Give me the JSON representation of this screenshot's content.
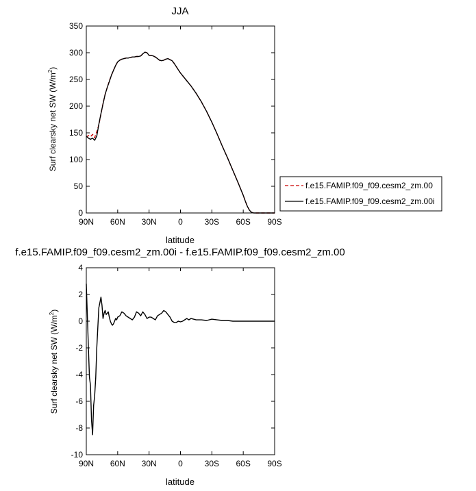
{
  "chart_data": [
    {
      "type": "line",
      "title": "JJA",
      "xlabel": "latitude",
      "ylabel": "Surf clearsky net SW (W/m",
      "ylabel_sup": "2",
      "ylabel_close": ")",
      "x_ticks": [
        90,
        60,
        30,
        0,
        -30,
        -60,
        -90
      ],
      "x_tick_labels": [
        "90N",
        "60N",
        "30N",
        "0",
        "30S",
        "60S",
        "90S"
      ],
      "xlim": [
        90,
        -90
      ],
      "ylim": [
        0,
        350
      ],
      "y_ticks": [
        0,
        50,
        100,
        150,
        200,
        250,
        300,
        350
      ],
      "y_tick_labels": [
        "0",
        "50",
        "100",
        "150",
        "200",
        "250",
        "300",
        "350"
      ],
      "grid": false,
      "legend_position": "right",
      "series": [
        {
          "name": "f.e15.FAMIP.f09_f09.cesm2_zm.00",
          "color": "#cc0000",
          "style": "dashed",
          "x": [
            90,
            88,
            86,
            84,
            82,
            80,
            78,
            76,
            74,
            72,
            70,
            68,
            66,
            64,
            62,
            60,
            58,
            56,
            54,
            52,
            50,
            48,
            46,
            44,
            42,
            40,
            38,
            36,
            34,
            32,
            30,
            28,
            26,
            24,
            22,
            20,
            18,
            16,
            14,
            12,
            10,
            8,
            6,
            4,
            2,
            0,
            -5,
            -10,
            -15,
            -20,
            -25,
            -30,
            -35,
            -40,
            -45,
            -50,
            -55,
            -60,
            -62,
            -64,
            -66,
            -68,
            -70,
            -75,
            -80,
            -85,
            -90
          ],
          "y": [
            142,
            145,
            143,
            147,
            141,
            152,
            165,
            185,
            205,
            222,
            235,
            247,
            258,
            267,
            276,
            283,
            286,
            288,
            289,
            290,
            290,
            291,
            292,
            292,
            293,
            293,
            294,
            298,
            301,
            300,
            295,
            295,
            294,
            292,
            289,
            286,
            285,
            286,
            288,
            289,
            287,
            285,
            280,
            274,
            268,
            262,
            250,
            238,
            224,
            208,
            190,
            170,
            148,
            125,
            103,
            80,
            57,
            33,
            22,
            12,
            5,
            1,
            0,
            0,
            0,
            0,
            0
          ]
        },
        {
          "name": "f.e15.FAMIP.f09_f09.cesm2_zm.00i",
          "color": "#000000",
          "style": "solid",
          "x": [
            90,
            88,
            86,
            84,
            82,
            80,
            78,
            76,
            74,
            72,
            70,
            68,
            66,
            64,
            62,
            60,
            58,
            56,
            54,
            52,
            50,
            48,
            46,
            44,
            42,
            40,
            38,
            36,
            34,
            32,
            30,
            28,
            26,
            24,
            22,
            20,
            18,
            16,
            14,
            12,
            10,
            8,
            6,
            4,
            2,
            0,
            -5,
            -10,
            -15,
            -20,
            -25,
            -30,
            -35,
            -40,
            -45,
            -50,
            -55,
            -60,
            -62,
            -64,
            -66,
            -68,
            -70,
            -75,
            -80,
            -85,
            -90
          ],
          "y": [
            144,
            140,
            138,
            140,
            136,
            144,
            166,
            186,
            204,
            222,
            235,
            246,
            258,
            267,
            276,
            283,
            286,
            288,
            289,
            290,
            290,
            291,
            292,
            292,
            293,
            293,
            294,
            298,
            301,
            300,
            295,
            295,
            294,
            292,
            289,
            286,
            285,
            286,
            288,
            289,
            287,
            285,
            280,
            274,
            268,
            262,
            250,
            238,
            224,
            208,
            190,
            170,
            148,
            125,
            103,
            80,
            57,
            33,
            22,
            12,
            5,
            1,
            0,
            0,
            0,
            0,
            0
          ]
        }
      ]
    },
    {
      "type": "line",
      "title": "f.e15.FAMIP.f09_f09.cesm2_zm.00i - f.e15.FAMIP.f09_f09.cesm2_zm.00",
      "xlabel": "latitude",
      "ylabel": "Surf clearsky net SW (W/m",
      "ylabel_sup": "2",
      "ylabel_close": ")",
      "x_ticks": [
        90,
        60,
        30,
        0,
        -30,
        -60,
        -90
      ],
      "x_tick_labels": [
        "90N",
        "60N",
        "30N",
        "0",
        "30S",
        "60S",
        "90S"
      ],
      "xlim": [
        90,
        -90
      ],
      "ylim": [
        -10,
        4
      ],
      "y_ticks": [
        -10,
        -8,
        -6,
        -4,
        -2,
        0,
        2,
        4
      ],
      "y_tick_labels": [
        "-10",
        "-8",
        "-6",
        "-4",
        "-2",
        "0",
        "2",
        "4"
      ],
      "grid": false,
      "series": [
        {
          "color": "#000000",
          "style": "solid",
          "x": [
            90,
            89,
            88,
            87,
            86,
            85,
            84,
            83,
            82,
            81,
            80,
            79,
            78,
            77,
            76,
            75,
            74,
            73,
            72,
            71,
            70,
            69,
            68,
            67,
            66,
            65,
            64,
            63,
            62,
            61,
            60,
            58,
            56,
            54,
            52,
            50,
            48,
            46,
            44,
            42,
            40,
            38,
            36,
            34,
            32,
            30,
            28,
            26,
            24,
            22,
            20,
            18,
            16,
            14,
            12,
            10,
            8,
            6,
            4,
            2,
            0,
            -2,
            -4,
            -6,
            -8,
            -10,
            -15,
            -20,
            -25,
            -30,
            -35,
            -40,
            -45,
            -50,
            -55,
            -60,
            -70,
            -80,
            -90
          ],
          "y": [
            2.8,
            0.5,
            -2,
            -4.2,
            -4.8,
            -7.4,
            -8.5,
            -6.3,
            -5.6,
            -4.2,
            -2,
            -0.5,
            1.0,
            1.4,
            1.8,
            1.2,
            0.2,
            0.6,
            0.8,
            0.5,
            0.6,
            0.7,
            0.3,
            0.0,
            -0.2,
            -0.3,
            -0.2,
            0.0,
            0.2,
            0.1,
            0.3,
            0.4,
            0.7,
            0.6,
            0.4,
            0.3,
            0.2,
            0.1,
            0.3,
            0.7,
            0.6,
            0.4,
            0.7,
            0.5,
            0.2,
            0.3,
            0.3,
            0.2,
            0.1,
            0.4,
            0.5,
            0.6,
            0.8,
            0.7,
            0.5,
            0.3,
            0.0,
            -0.1,
            -0.1,
            0.0,
            -0.05,
            0.0,
            0.1,
            0.2,
            0.1,
            0.2,
            0.1,
            0.1,
            0.05,
            0.15,
            0.1,
            0.05,
            0.05,
            0.0,
            0.0,
            0.0,
            0.0,
            0.0,
            0.0
          ]
        }
      ]
    }
  ]
}
